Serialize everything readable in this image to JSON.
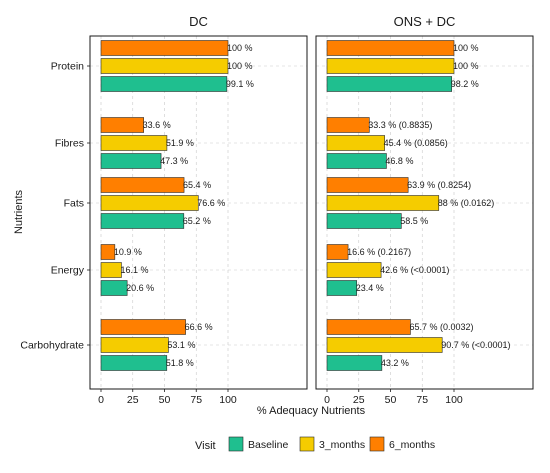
{
  "chart_data": {
    "type": "bar",
    "orientation": "horizontal",
    "xlabel": "% Adequacy Nutrients",
    "ylabel": "Nutrients",
    "xlim": [
      0,
      115
    ],
    "xticks": [
      0,
      25,
      50,
      75,
      100
    ],
    "grid": true,
    "legend": {
      "title": "Visit",
      "placement": "bottom"
    },
    "categories": [
      "Protein",
      "Fibres",
      "Fats",
      "Energy",
      "Carbohydrate"
    ],
    "series": [
      {
        "name": "Baseline",
        "color": "#1fbf8f"
      },
      {
        "name": "3_months",
        "color": "#f5cc00"
      },
      {
        "name": "6_months",
        "color": "#ff7f00"
      }
    ],
    "panels": [
      {
        "title": "DC",
        "values": {
          "Baseline": [
            99.1,
            47.3,
            65.2,
            20.6,
            51.8
          ],
          "3_months": [
            100,
            51.9,
            76.6,
            16.1,
            53.1
          ],
          "6_months": [
            100,
            33.6,
            65.4,
            10.9,
            66.6
          ]
        },
        "labels": {
          "Baseline": [
            "99.1 %",
            "47.3 %",
            "65.2 %",
            "20.6 %",
            "51.8 %"
          ],
          "3_months": [
            "100 %",
            "51.9 %",
            "76.6 %",
            "16.1 %",
            "53.1 %"
          ],
          "6_months": [
            "100 %",
            "33.6 %",
            "65.4 %",
            "10.9 %",
            "66.6 %"
          ]
        }
      },
      {
        "title": "ONS + DC",
        "values": {
          "Baseline": [
            98.2,
            46.8,
            58.5,
            23.4,
            43.2
          ],
          "3_months": [
            100,
            45.4,
            88,
            42.6,
            90.7
          ],
          "6_months": [
            100,
            33.3,
            63.9,
            16.6,
            65.7
          ]
        },
        "labels": {
          "Baseline": [
            "98.2 %",
            "46.8 %",
            "58.5 %",
            "23.4 %",
            "43.2 %"
          ],
          "3_months": [
            "100 %",
            "45.4 % (0.0856)",
            "88 % (0.0162)",
            "42.6 % (<0.0001)",
            "90.7 % (<0.0001)"
          ],
          "6_months": [
            "100 %",
            "33.3 % (0.8835)",
            "63.9 % (0.8254)",
            "16.6 % (0.2167)",
            "65.7 % (0.0032)"
          ]
        }
      }
    ]
  }
}
